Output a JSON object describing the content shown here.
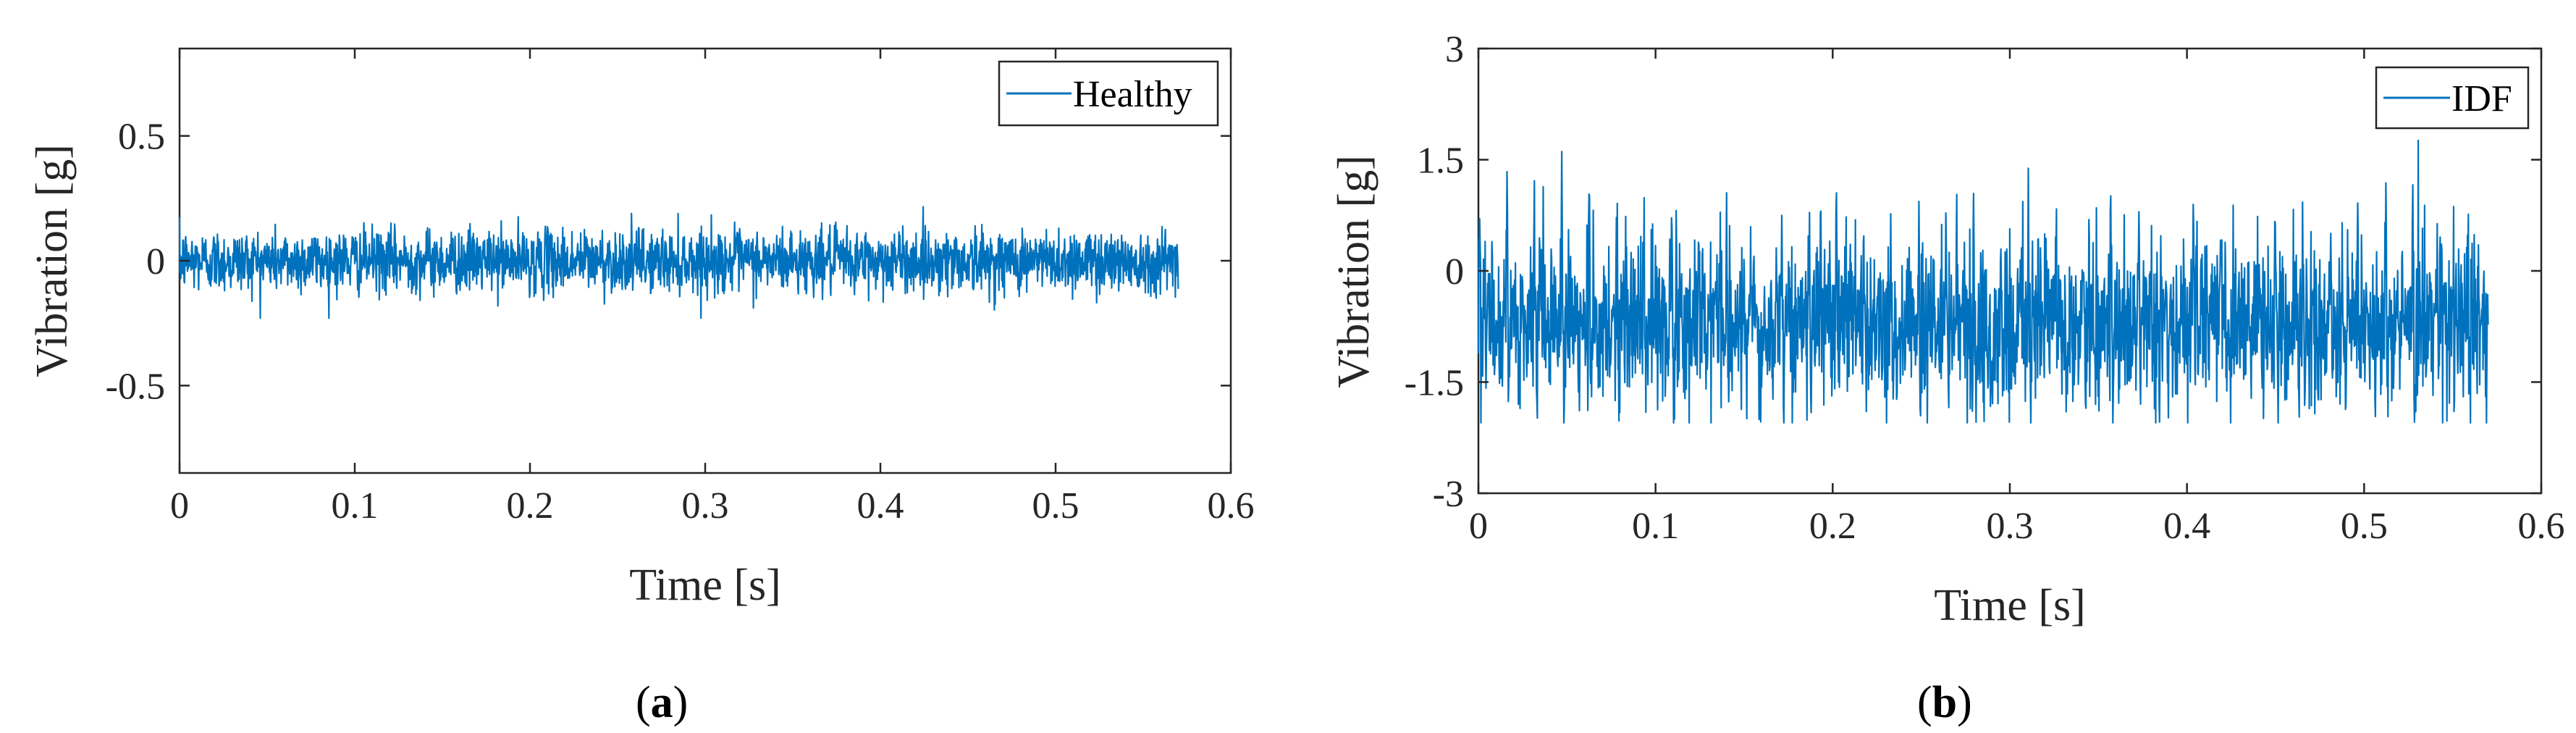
{
  "chart_data": [
    {
      "type": "line",
      "panel_label": "(a)",
      "panel_letter": "a",
      "xlabel": "Time [s]",
      "ylabel": "Vibration [g]",
      "xlim": [
        0,
        0.6
      ],
      "ylim": [
        -0.85,
        0.85
      ],
      "xticks": [
        0,
        0.1,
        0.2,
        0.3,
        0.4,
        0.5,
        0.6
      ],
      "xtick_labels": [
        "0",
        "0.1",
        "0.2",
        "0.3",
        "0.4",
        "0.5",
        "0.6"
      ],
      "yticks": [
        0.5,
        0,
        -0.5
      ],
      "ytick_labels": [
        "0.5",
        "0",
        "-0.5"
      ],
      "legend_position": "top-right",
      "series": [
        {
          "name": "Healthy",
          "color": "#0072BD",
          "t_start": 0,
          "t_end": 0.57,
          "mean": 0.0,
          "amplitude": 0.15,
          "peak_max": 0.23,
          "peak_min": -0.23
        }
      ]
    },
    {
      "type": "line",
      "panel_label": "(b)",
      "panel_letter": "b",
      "xlabel": "Time [s]",
      "ylabel": "Vibration [g]",
      "xlim": [
        0,
        0.6
      ],
      "ylim": [
        -3,
        3
      ],
      "xticks": [
        0,
        0.1,
        0.2,
        0.3,
        0.4,
        0.5,
        0.6
      ],
      "xtick_labels": [
        "0",
        "0.1",
        "0.2",
        "0.3",
        "0.4",
        "0.5",
        "0.6"
      ],
      "yticks": [
        3,
        1.5,
        0,
        -1.5,
        -3
      ],
      "ytick_labels": [
        "3",
        "1.5",
        "0",
        "-1.5",
        "-3"
      ],
      "legend_position": "top-right",
      "series": [
        {
          "name": "IDF",
          "color": "#0072BD",
          "t_start": 0,
          "t_end": 0.57,
          "mean": -0.7,
          "amplitude": 1.0,
          "peak_max": 2.1,
          "peak_min": -2.05,
          "impulse_period": 0.0155
        }
      ]
    }
  ]
}
